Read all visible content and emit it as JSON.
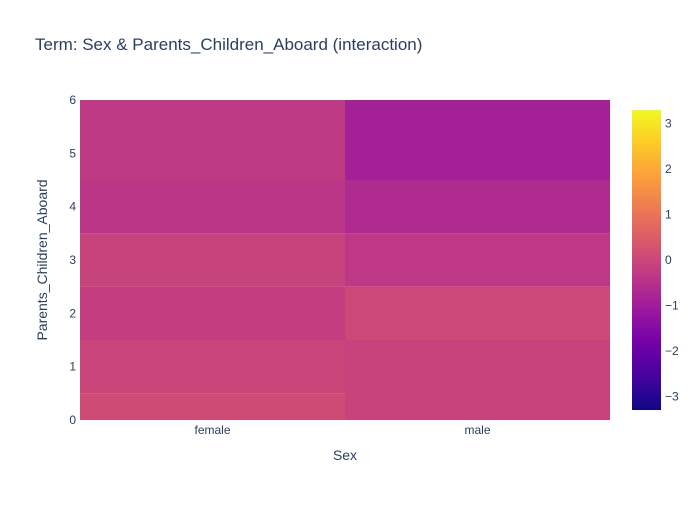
{
  "chart_data": {
    "type": "heatmap",
    "title": "Term: Sex & Parents_Children_Aboard (interaction)",
    "xlabel": "Sex",
    "ylabel": "Parents_Children_Aboard",
    "x_categories": [
      "female",
      "male"
    ],
    "y_ticks": [
      0,
      1,
      2,
      3,
      4,
      5,
      6
    ],
    "ylim": [
      0,
      6
    ],
    "cells": [
      {
        "x": "female",
        "y_range": [
          0,
          0.5
        ],
        "value": 0.1
      },
      {
        "x": "female",
        "y_range": [
          0.5,
          1.5
        ],
        "value": -0.05
      },
      {
        "x": "female",
        "y_range": [
          1.5,
          2.5
        ],
        "value": -0.2
      },
      {
        "x": "female",
        "y_range": [
          2.5,
          3.5
        ],
        "value": -0.1
      },
      {
        "x": "female",
        "y_range": [
          3.5,
          4.5
        ],
        "value": -0.4
      },
      {
        "x": "female",
        "y_range": [
          4.5,
          6
        ],
        "value": -0.3
      },
      {
        "x": "male",
        "y_range": [
          0,
          1.5
        ],
        "value": -0.1
      },
      {
        "x": "male",
        "y_range": [
          1.5,
          2.5
        ],
        "value": 0.05
      },
      {
        "x": "male",
        "y_range": [
          2.5,
          3.5
        ],
        "value": -0.35
      },
      {
        "x": "male",
        "y_range": [
          3.5,
          4.5
        ],
        "value": -0.65
      },
      {
        "x": "male",
        "y_range": [
          4.5,
          6
        ],
        "value": -0.9
      }
    ],
    "colorbar": {
      "min": -3.3,
      "max": 3.3,
      "ticks": [
        -3,
        -2,
        -1,
        0,
        1,
        2,
        3
      ],
      "tick_labels": [
        "−3",
        "−2",
        "−1",
        "0",
        "1",
        "2",
        "3"
      ],
      "colorscale": [
        "#0d0887",
        "#46039f",
        "#7201a8",
        "#9c179e",
        "#bd3786",
        "#d8576b",
        "#ed7953",
        "#fb9f3a",
        "#fdca26",
        "#f0f921"
      ]
    }
  }
}
